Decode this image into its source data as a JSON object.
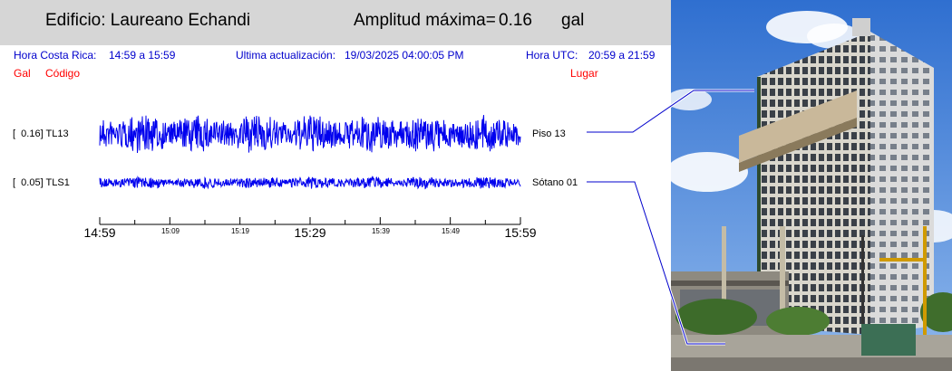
{
  "header": {
    "building_label": "Edificio: Laureano Echandi",
    "amp_label": "Amplitud máxima=",
    "amp_value": "0.16",
    "amp_unit": "gal"
  },
  "info": {
    "cr_label": "Hora Costa Rica:",
    "cr_range": "14:59 a 15:59",
    "update_label": "Ultima actualización:",
    "update_value": "19/03/2025 04:00:05 PM",
    "utc_label": "Hora UTC:",
    "utc_range": "20:59 a 21:59"
  },
  "columns": {
    "gal": "Gal",
    "code": "Código",
    "place": "Lugar"
  },
  "chart_data": {
    "type": "line",
    "series": [
      {
        "name": "TL13",
        "max_gal": "0.16",
        "location": "Piso 13"
      },
      {
        "name": "TLS1",
        "max_gal": "0.05",
        "location": "Sótano 01"
      }
    ],
    "x_ticks_major": [
      "14:59",
      "15:29",
      "15:59"
    ],
    "x_ticks_minor": [
      "15:09",
      "15:19",
      "15:39",
      "15:49"
    ],
    "x_range": [
      "14:59",
      "15:59"
    ]
  },
  "colors": {
    "trace": "#0000ee",
    "info": "#0000cc",
    "column_header": "#ff0000",
    "header_bg": "#d6d6d6"
  }
}
